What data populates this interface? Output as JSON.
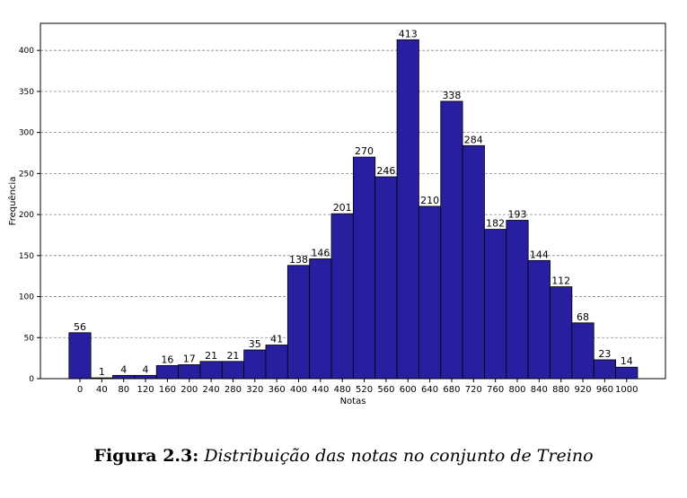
{
  "chart_data": {
    "type": "bar",
    "categories": [
      "0",
      "40",
      "80",
      "120",
      "160",
      "200",
      "240",
      "280",
      "320",
      "360",
      "400",
      "440",
      "480",
      "520",
      "560",
      "600",
      "640",
      "680",
      "720",
      "760",
      "800",
      "840",
      "880",
      "920",
      "960",
      "1000"
    ],
    "values": [
      56,
      1,
      4,
      4,
      16,
      17,
      21,
      21,
      35,
      41,
      138,
      146,
      201,
      270,
      246,
      413,
      210,
      338,
      284,
      182,
      193,
      144,
      112,
      68,
      23,
      14
    ],
    "data_labels": [
      "56",
      "1",
      "4",
      "4",
      "16",
      "17",
      "21",
      "21",
      "35",
      "41",
      "138",
      "146",
      "201",
      "270",
      "246",
      "413",
      "210",
      "338",
      "284",
      "182",
      "193",
      "144",
      "112",
      "68",
      "23",
      "14"
    ],
    "xlabel": "Notas",
    "ylabel": "Frequência",
    "ylim": [
      0,
      433
    ],
    "yticks": [
      0,
      50,
      100,
      150,
      200,
      250,
      300,
      350,
      400
    ],
    "grid": "horizontal-dashed",
    "bar_color": "#271ea0",
    "bar_edge_color": "#000000"
  },
  "caption": {
    "label": "Figura 2.3:",
    "text": "Distribuição das notas no conjunto de Treino"
  }
}
